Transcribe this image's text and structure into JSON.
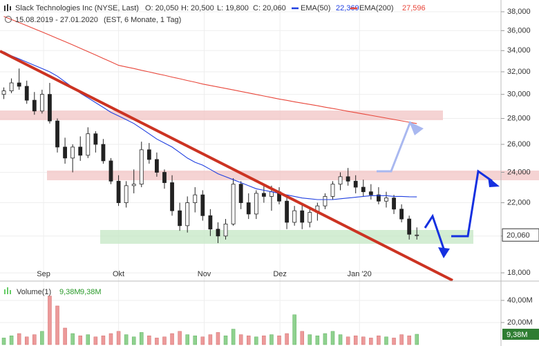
{
  "chart_data": {
    "type": "candlestick",
    "title": "Slack Technologies Inc (NYSE, Last)",
    "quote": [
      "O: 20,050",
      "H: 20,500",
      "L: 19,800",
      "C: 20,060"
    ],
    "subtitle": "15.08.2019 - 27.01.2020",
    "info": "(EST, 6 Monate, 1 Tag)",
    "log_scale": true,
    "grid": true,
    "ylim": [
      17650,
      39300
    ],
    "yticks": [
      {
        "value": 18000,
        "label": "18,000"
      },
      {
        "value": 20000,
        "label": "20,000"
      },
      {
        "value": 22000,
        "label": "22,000"
      },
      {
        "value": 24000,
        "label": "24,000"
      },
      {
        "value": 26000,
        "label": "26,000"
      },
      {
        "value": 28000,
        "label": "28,000"
      },
      {
        "value": 30000,
        "label": "30,000"
      },
      {
        "value": 32000,
        "label": "32,000"
      },
      {
        "value": 34000,
        "label": "34,000"
      },
      {
        "value": 36000,
        "label": "36,000"
      },
      {
        "value": 38000,
        "label": "38,000"
      }
    ],
    "xlim": [
      -0.5,
      65
    ],
    "xticks": [
      {
        "value": 5.2,
        "label": "Sep"
      },
      {
        "value": 15,
        "label": "Okt"
      },
      {
        "value": 26.2,
        "label": "Nov"
      },
      {
        "value": 36.1,
        "label": "Dez"
      },
      {
        "value": 46.5,
        "label": "Jan '20"
      }
    ],
    "candles": {
      "open": [
        30000,
        30300,
        31000,
        30700,
        29500,
        28600,
        30000,
        27800,
        25800,
        25000,
        25800,
        25200,
        26800,
        26000,
        24800,
        23400,
        22000,
        23100,
        23200,
        25600,
        24900,
        24000,
        23300,
        21500,
        20600,
        22000,
        22500,
        21200,
        20400,
        20000,
        20700,
        23200,
        22000,
        21300,
        22600,
        22400,
        22700,
        22100,
        20800,
        21500,
        20800,
        21400,
        21800,
        22400,
        23200,
        23700,
        23400,
        23000,
        22700,
        22500,
        22100,
        22300,
        21600,
        21000,
        20050
      ],
      "high": [
        30600,
        31400,
        32300,
        31200,
        30200,
        30400,
        31000,
        28000,
        26500,
        26000,
        26600,
        27300,
        27000,
        26400,
        25000,
        23800,
        23400,
        24200,
        26200,
        26100,
        25400,
        24200,
        23800,
        22000,
        22400,
        23000,
        22800,
        21600,
        20800,
        21000,
        23600,
        23400,
        22600,
        22800,
        23200,
        23100,
        23000,
        22400,
        21800,
        21900,
        21700,
        22000,
        22600,
        23400,
        24000,
        24300,
        23800,
        23500,
        23200,
        23000,
        22700,
        22500,
        21900,
        21200,
        20500
      ],
      "low": [
        29600,
        30100,
        30400,
        29200,
        28300,
        28400,
        27600,
        25400,
        24600,
        24000,
        24800,
        25000,
        25400,
        24600,
        23200,
        21800,
        21700,
        22600,
        23000,
        24600,
        23700,
        22900,
        21200,
        20300,
        20200,
        21400,
        20900,
        20000,
        19600,
        19800,
        20600,
        21600,
        21000,
        21000,
        22000,
        21500,
        21900,
        20400,
        20600,
        20400,
        20500,
        20900,
        21600,
        22200,
        22800,
        23100,
        22600,
        22400,
        22200,
        21900,
        21700,
        21300,
        20800,
        19800,
        19800
      ],
      "close": [
        30300,
        31000,
        30700,
        29500,
        28600,
        30000,
        27800,
        25800,
        25000,
        25800,
        25200,
        26800,
        26000,
        24800,
        23400,
        22000,
        23100,
        23200,
        25600,
        24900,
        24000,
        23300,
        21500,
        20600,
        22000,
        22500,
        21200,
        20400,
        20000,
        20700,
        23200,
        22000,
        21300,
        22600,
        22400,
        22700,
        22100,
        20800,
        21500,
        20800,
        21400,
        21800,
        22400,
        23200,
        23700,
        23400,
        23000,
        22700,
        22500,
        22100,
        22300,
        21600,
        21000,
        20100,
        20060
      ]
    },
    "series": [
      {
        "name": "EMA(50)",
        "color": "#1f3fe0",
        "legend_value": "22,369",
        "values": [
          33900,
          33500,
          33200,
          32900,
          32600,
          32300,
          32000,
          31600,
          31100,
          30600,
          30100,
          29700,
          29300,
          28900,
          28500,
          28200,
          27900,
          27600,
          27200,
          26800,
          26400,
          26100,
          25800,
          25400,
          25000,
          24700,
          24500,
          24200,
          23900,
          23700,
          23500,
          23300,
          23100,
          22900,
          22800,
          22700,
          22600,
          22500,
          22400,
          22300,
          22250,
          22200,
          22200,
          22200,
          22250,
          22300,
          22350,
          22400,
          22450,
          22450,
          22450,
          22400,
          22400,
          22380,
          22369
        ]
      },
      {
        "name": "EMA(200)",
        "color": "#e8463a",
        "legend_value": "27,596",
        "values": [
          37500,
          37170,
          36850,
          36520,
          36190,
          35870,
          35540,
          35210,
          34890,
          34560,
          34230,
          33900,
          33580,
          33250,
          32930,
          32600,
          32450,
          32300,
          32140,
          31990,
          31830,
          31680,
          31520,
          31370,
          31210,
          31060,
          30900,
          30770,
          30640,
          30510,
          30380,
          30250,
          30120,
          29990,
          29860,
          29730,
          29600,
          29490,
          29370,
          29260,
          29150,
          29040,
          28920,
          28810,
          28700,
          28580,
          28470,
          28360,
          28250,
          28140,
          28030,
          27920,
          27810,
          27700,
          27596
        ]
      }
    ],
    "last": {
      "value": 20060,
      "label": "20,060"
    },
    "volume": {
      "name": "Volume(1)",
      "labels": [
        "9,38M",
        "9,38M"
      ],
      "ylim": [
        0,
        55.6
      ],
      "yticks": [
        {
          "value": 20,
          "label": "20,00M"
        },
        {
          "value": 40,
          "label": "40,00M"
        }
      ],
      "last": {
        "value": 9.38,
        "label": "9,38M"
      },
      "values": [
        6,
        8,
        10,
        7,
        9,
        12,
        44,
        35,
        15,
        10,
        8,
        9,
        7,
        8,
        10,
        12,
        9,
        7,
        11,
        8,
        6,
        7,
        10,
        12,
        9,
        8,
        7,
        9,
        11,
        8,
        14,
        9,
        8,
        7,
        8,
        9,
        8,
        10,
        27,
        12,
        9,
        8,
        10,
        12,
        9,
        7,
        8,
        7,
        6,
        8,
        7,
        6,
        9,
        8,
        9.38
      ]
    }
  }
}
